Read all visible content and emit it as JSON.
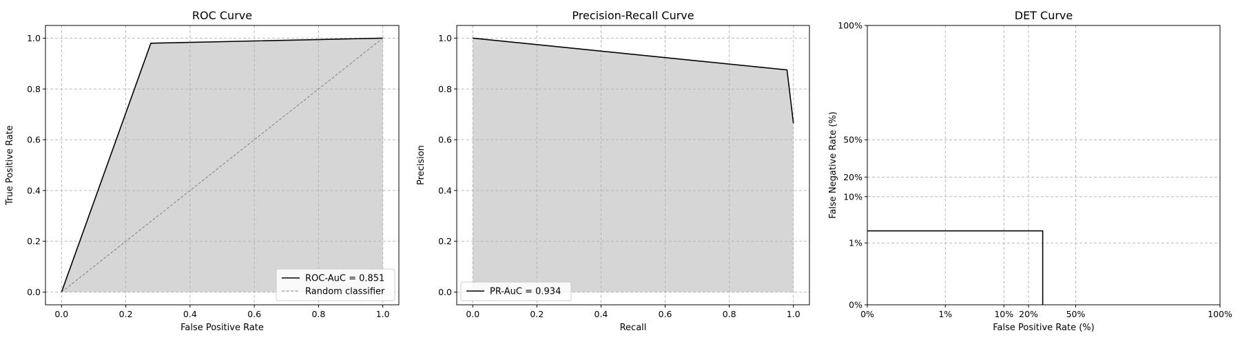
{
  "chart_data": [
    {
      "type": "area",
      "title": "ROC Curve",
      "xlabel": "False Positive Rate",
      "ylabel": "True Positive Rate",
      "xlim": [
        -0.05,
        1.05
      ],
      "ylim": [
        -0.05,
        1.05
      ],
      "xticks": [
        0.0,
        0.2,
        0.4,
        0.6,
        0.8,
        1.0
      ],
      "yticks": [
        0.0,
        0.2,
        0.4,
        0.6,
        0.8,
        1.0
      ],
      "xtick_labels": [
        "0.0",
        "0.2",
        "0.4",
        "0.6",
        "0.8",
        "1.0"
      ],
      "ytick_labels": [
        "0.0",
        "0.2",
        "0.4",
        "0.6",
        "0.8",
        "1.0"
      ],
      "grid": true,
      "legend_position": "lower-right",
      "series": [
        {
          "name": "ROC-AuC = 0.851",
          "style": "solid",
          "color": "#000000",
          "x": [
            0.0,
            0.278,
            1.0
          ],
          "y": [
            0.0,
            0.98,
            1.0
          ],
          "fill": "#d6d6d6"
        },
        {
          "name": "Random classifier",
          "style": "dashed",
          "color": "#808080",
          "x": [
            0.0,
            1.0
          ],
          "y": [
            0.0,
            1.0
          ]
        }
      ]
    },
    {
      "type": "area",
      "title": "Precision-Recall Curve",
      "xlabel": "Recall",
      "ylabel": "Precision",
      "xlim": [
        -0.05,
        1.05
      ],
      "ylim": [
        -0.05,
        1.05
      ],
      "xticks": [
        0.0,
        0.2,
        0.4,
        0.6,
        0.8,
        1.0
      ],
      "yticks": [
        0.0,
        0.2,
        0.4,
        0.6,
        0.8,
        1.0
      ],
      "xtick_labels": [
        "0.0",
        "0.2",
        "0.4",
        "0.6",
        "0.8",
        "1.0"
      ],
      "ytick_labels": [
        "0.0",
        "0.2",
        "0.4",
        "0.6",
        "0.8",
        "1.0"
      ],
      "grid": true,
      "legend_position": "lower-left",
      "series": [
        {
          "name": "PR-AuC = 0.934",
          "style": "solid",
          "color": "#000000",
          "x": [
            0.0,
            0.98,
            1.0
          ],
          "y": [
            1.0,
            0.875,
            0.665
          ],
          "fill": "#d6d6d6"
        }
      ]
    },
    {
      "type": "line",
      "title": "DET Curve",
      "xlabel": "False Positive Rate (%)",
      "ylabel": "False Negative Rate (%)",
      "scale": "probit",
      "xlim": [
        0.0001,
        0.995
      ],
      "ylim": [
        0.0001,
        0.995
      ],
      "xticks": [
        0.0001,
        0.01,
        0.1,
        0.2,
        0.5,
        0.995
      ],
      "yticks": [
        0.0001,
        0.01,
        0.1,
        0.2,
        0.5,
        0.995
      ],
      "xtick_labels": [
        "0%",
        "1%",
        "10%",
        "20%",
        "50%",
        "100%"
      ],
      "ytick_labels": [
        "0%",
        "1%",
        "10%",
        "20%",
        "50%",
        "100%"
      ],
      "grid": true,
      "series": [
        {
          "name": "DET",
          "style": "solid",
          "color": "#000000",
          "x": [
            0.0001,
            0.278,
            0.278
          ],
          "y": [
            0.02,
            0.02,
            0.0001
          ]
        }
      ]
    }
  ]
}
